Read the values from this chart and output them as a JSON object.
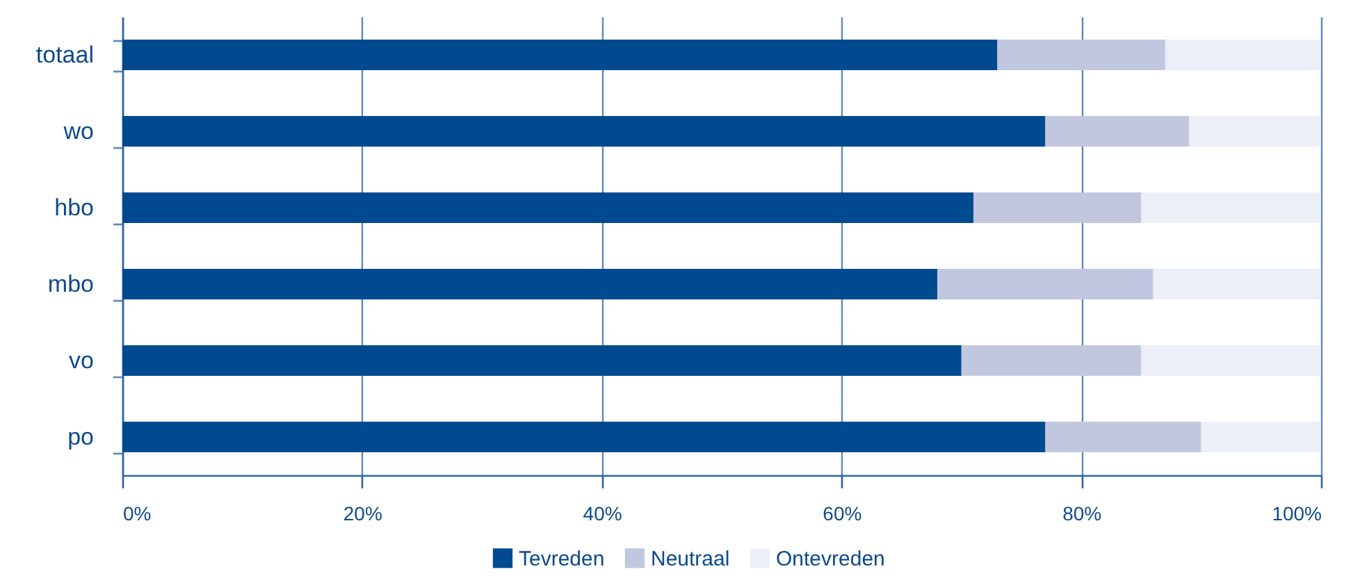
{
  "chart_data": {
    "type": "bar",
    "orientation": "horizontal",
    "stacked": true,
    "categories": [
      "totaal",
      "wo",
      "hbo",
      "mbo",
      "vo",
      "po"
    ],
    "series": [
      {
        "name": "Tevreden",
        "color": "#024a90",
        "values": [
          73,
          77,
          71,
          68,
          70,
          77
        ]
      },
      {
        "name": "Neutraal",
        "color": "#c2c7e0",
        "values": [
          14,
          12,
          14,
          18,
          15,
          13
        ]
      },
      {
        "name": "Ontevreden",
        "color": "#eceff7",
        "values": [
          13,
          11,
          15,
          14,
          15,
          10
        ]
      }
    ],
    "xlim": [
      0,
      100
    ],
    "xticks": [
      {
        "value": 0,
        "label": "0%"
      },
      {
        "value": 20,
        "label": "20%"
      },
      {
        "value": 40,
        "label": "40%"
      },
      {
        "value": 60,
        "label": "60%"
      },
      {
        "value": 80,
        "label": "80%"
      },
      {
        "value": 100,
        "label": "100%"
      }
    ],
    "grid": "x",
    "legend": "bottom"
  }
}
